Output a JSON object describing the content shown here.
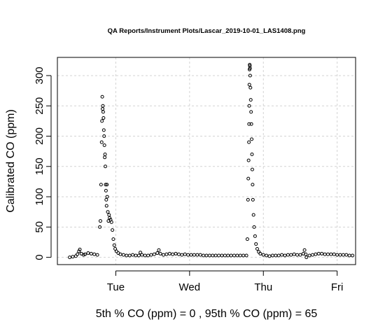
{
  "chart_data": {
    "type": "scatter",
    "title": "QA Reports/Instrument Plots/Lascar_2019-10-01_LAS1408.png",
    "xlabel": "5th % CO (ppm) =  0 , 95th % CO (ppm)  =  65",
    "ylabel": "Calibrated CO (ppm)",
    "x_ticks": [
      "Tue",
      "Wed",
      "Thu",
      "Fri"
    ],
    "x_tick_positions": [
      24,
      48,
      72,
      96
    ],
    "y_ticks": [
      0,
      50,
      100,
      150,
      200,
      250,
      300
    ],
    "xlim": [
      5,
      102
    ],
    "ylim": [
      -12,
      330
    ],
    "grid": true,
    "series": [
      {
        "values": [
          [
            9,
            0
          ],
          [
            10,
            1
          ],
          [
            11,
            2
          ],
          [
            11.5,
            5
          ],
          [
            12,
            10
          ],
          [
            12.3,
            13
          ],
          [
            12.8,
            6
          ],
          [
            13.5,
            4
          ],
          [
            14,
            5
          ],
          [
            15,
            7
          ],
          [
            16,
            6
          ],
          [
            17,
            5
          ],
          [
            18,
            4
          ],
          [
            18.8,
            50
          ],
          [
            19,
            60
          ],
          [
            19.2,
            120
          ],
          [
            19.4,
            190
          ],
          [
            19.5,
            225
          ],
          [
            19.6,
            265
          ],
          [
            19.7,
            245
          ],
          [
            19.8,
            250
          ],
          [
            19.9,
            240
          ],
          [
            20,
            230
          ],
          [
            20.1,
            210
          ],
          [
            20.2,
            200
          ],
          [
            20.3,
            185
          ],
          [
            20.4,
            165
          ],
          [
            20.5,
            170
          ],
          [
            20.6,
            150
          ],
          [
            20.7,
            120
          ],
          [
            20.8,
            110
          ],
          [
            20.9,
            95
          ],
          [
            21,
            85
          ],
          [
            21.1,
            120
          ],
          [
            21.2,
            100
          ],
          [
            21.4,
            75
          ],
          [
            21.6,
            60
          ],
          [
            21.8,
            70
          ],
          [
            22,
            65
          ],
          [
            22.3,
            62
          ],
          [
            22.6,
            58
          ],
          [
            22.9,
            45
          ],
          [
            23.2,
            30
          ],
          [
            23.5,
            20
          ],
          [
            23.8,
            14
          ],
          [
            24.2,
            10
          ],
          [
            24.8,
            7
          ],
          [
            25.5,
            5
          ],
          [
            26.5,
            4
          ],
          [
            27.5,
            3
          ],
          [
            28.5,
            3
          ],
          [
            29.5,
            4
          ],
          [
            30.5,
            3
          ],
          [
            31.5,
            3
          ],
          [
            32,
            8
          ],
          [
            32.5,
            4
          ],
          [
            33.5,
            3
          ],
          [
            34.5,
            3
          ],
          [
            35.5,
            4
          ],
          [
            36.5,
            5
          ],
          [
            37.5,
            7
          ],
          [
            38,
            12
          ],
          [
            38.5,
            6
          ],
          [
            39.5,
            4
          ],
          [
            40.5,
            5
          ],
          [
            41.5,
            6
          ],
          [
            42.5,
            5
          ],
          [
            43.5,
            6
          ],
          [
            44.5,
            5
          ],
          [
            45.5,
            4
          ],
          [
            46.5,
            5
          ],
          [
            47.5,
            4
          ],
          [
            48.5,
            4
          ],
          [
            49.5,
            4
          ],
          [
            50.5,
            4
          ],
          [
            51.5,
            4
          ],
          [
            52.5,
            3
          ],
          [
            53.5,
            3
          ],
          [
            54.5,
            3
          ],
          [
            55.5,
            3
          ],
          [
            56.5,
            3
          ],
          [
            57.5,
            3
          ],
          [
            58.5,
            3
          ],
          [
            59.5,
            3
          ],
          [
            60.5,
            3
          ],
          [
            61.5,
            3
          ],
          [
            62.5,
            3
          ],
          [
            63.5,
            3
          ],
          [
            64.5,
            3
          ],
          [
            65.5,
            3
          ],
          [
            66.5,
            3
          ],
          [
            66.8,
            30
          ],
          [
            67,
            95
          ],
          [
            67.1,
            130
          ],
          [
            67.2,
            160
          ],
          [
            67.3,
            190
          ],
          [
            67.35,
            220
          ],
          [
            67.4,
            250
          ],
          [
            67.45,
            285
          ],
          [
            67.5,
            310
          ],
          [
            67.55,
            318
          ],
          [
            67.6,
            316
          ],
          [
            67.65,
            312
          ],
          [
            67.7,
            300
          ],
          [
            67.8,
            280
          ],
          [
            67.9,
            260
          ],
          [
            68,
            240
          ],
          [
            68.1,
            220
          ],
          [
            68.2,
            195
          ],
          [
            68.3,
            170
          ],
          [
            68.4,
            145
          ],
          [
            68.5,
            120
          ],
          [
            68.6,
            95
          ],
          [
            68.8,
            70
          ],
          [
            69,
            50
          ],
          [
            69.3,
            35
          ],
          [
            69.6,
            22
          ],
          [
            70,
            14
          ],
          [
            70.5,
            9
          ],
          [
            71,
            6
          ],
          [
            72,
            4
          ],
          [
            73,
            3
          ],
          [
            74,
            2
          ],
          [
            75,
            3
          ],
          [
            76,
            3
          ],
          [
            77,
            3
          ],
          [
            78,
            4
          ],
          [
            79,
            3
          ],
          [
            80,
            4
          ],
          [
            81,
            4
          ],
          [
            82,
            5
          ],
          [
            83,
            4
          ],
          [
            84,
            4
          ],
          [
            85,
            6
          ],
          [
            85.4,
            12
          ],
          [
            85.8,
            5
          ],
          [
            86,
            0
          ],
          [
            87,
            3
          ],
          [
            88,
            4
          ],
          [
            89,
            5
          ],
          [
            90,
            6
          ],
          [
            91,
            6
          ],
          [
            92,
            5
          ],
          [
            93,
            5
          ],
          [
            94,
            5
          ],
          [
            95,
            5
          ],
          [
            96,
            4
          ],
          [
            97,
            4
          ],
          [
            98,
            4
          ],
          [
            99,
            4
          ],
          [
            100,
            3
          ],
          [
            101,
            3
          ]
        ]
      }
    ]
  }
}
